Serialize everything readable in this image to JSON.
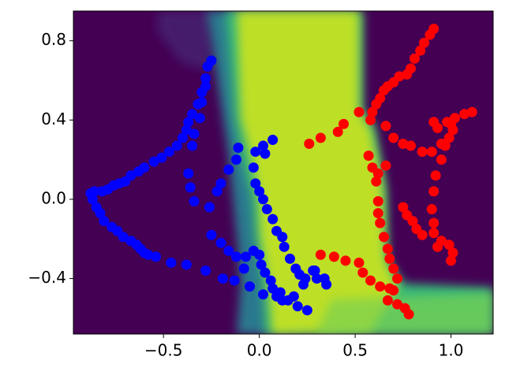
{
  "chart_data": {
    "type": "scatter",
    "xlim": [
      -0.97,
      1.22
    ],
    "ylim": [
      -0.68,
      0.95
    ],
    "xticks": [
      {
        "value": -0.5,
        "label": "−0.5"
      },
      {
        "value": 0.0,
        "label": "0.0"
      },
      {
        "value": 0.5,
        "label": "0.5"
      },
      {
        "value": 1.0,
        "label": "1.0"
      }
    ],
    "yticks": [
      {
        "value": -0.4,
        "label": "−0.4"
      },
      {
        "value": 0.0,
        "label": "0.0"
      },
      {
        "value": 0.4,
        "label": "0.4"
      },
      {
        "value": 0.8,
        "label": "0.8"
      }
    ],
    "grid": false,
    "series": [
      {
        "color": "#0000ff",
        "x": [
          -0.88,
          -0.86,
          -0.82,
          -0.79,
          -0.76,
          -0.73,
          -0.7,
          -0.67,
          -0.63,
          -0.6,
          -0.55,
          -0.51,
          -0.47,
          -0.43,
          -0.4,
          -0.38,
          -0.37,
          -0.35,
          -0.32,
          -0.3,
          -0.28,
          -0.27,
          -0.25,
          -0.87,
          -0.85,
          -0.83,
          -0.81,
          -0.77,
          -0.74,
          -0.71,
          -0.67,
          -0.64,
          -0.62,
          -0.6,
          -0.58,
          -0.54,
          -0.46,
          -0.38,
          -0.28,
          -0.19,
          -0.13,
          -0.05,
          0.02,
          -0.28,
          -0.3,
          -0.31,
          -0.34,
          -0.35,
          -0.37,
          -0.36,
          -0.34,
          -0.26,
          -0.22,
          -0.2,
          -0.16,
          -0.12,
          -0.11,
          -0.25,
          -0.2,
          -0.16,
          -0.12,
          -0.07,
          -0.03,
          0.0,
          -0.08,
          -0.02,
          0.02,
          0.03,
          0.07,
          -0.03,
          -0.02,
          0.0,
          0.02,
          0.04,
          0.07,
          0.09,
          0.12,
          0.13,
          0.16,
          0.19,
          0.21,
          0.24,
          0.28,
          0.3,
          0.34,
          0.35,
          0.29,
          0.23,
          0.18,
          0.12,
          0.09,
          0.07,
          0.06,
          0.03,
          0.01,
          0.11,
          0.15,
          0.2,
          0.25
        ],
        "y": [
          0.03,
          0.04,
          0.04,
          0.05,
          0.07,
          0.08,
          0.09,
          0.12,
          0.14,
          0.16,
          0.19,
          0.21,
          0.24,
          0.27,
          0.31,
          0.35,
          0.39,
          0.43,
          0.48,
          0.54,
          0.61,
          0.67,
          0.7,
          0.0,
          -0.04,
          -0.07,
          -0.11,
          -0.14,
          -0.16,
          -0.19,
          -0.21,
          -0.23,
          -0.25,
          -0.27,
          -0.28,
          -0.29,
          -0.32,
          -0.33,
          -0.36,
          -0.4,
          -0.41,
          -0.44,
          -0.48,
          0.57,
          0.49,
          0.41,
          0.33,
          0.27,
          0.13,
          0.06,
          -0.01,
          -0.04,
          0.04,
          0.08,
          0.15,
          0.2,
          0.26,
          -0.18,
          -0.22,
          -0.26,
          -0.29,
          -0.29,
          -0.26,
          -0.28,
          -0.35,
          0.24,
          0.27,
          0.23,
          0.3,
          0.16,
          0.08,
          0.04,
          0.0,
          -0.05,
          -0.1,
          -0.16,
          -0.19,
          -0.24,
          -0.3,
          -0.35,
          -0.38,
          -0.4,
          -0.36,
          -0.4,
          -0.4,
          -0.43,
          -0.36,
          -0.43,
          -0.49,
          -0.51,
          -0.49,
          -0.45,
          -0.41,
          -0.37,
          -0.33,
          -0.47,
          -0.51,
          -0.54,
          -0.56
        ]
      },
      {
        "color": "#ff0000",
        "x": [
          0.91,
          0.89,
          0.86,
          0.84,
          0.81,
          0.79,
          0.77,
          0.73,
          0.7,
          0.67,
          0.65,
          0.63,
          0.61,
          0.59,
          0.58,
          1.11,
          1.07,
          1.02,
          0.98,
          0.93,
          0.91,
          1.01,
          0.99,
          0.95,
          0.9,
          0.85,
          0.79,
          0.75,
          0.7,
          0.66,
          1.0,
          0.97,
          0.95,
          0.92,
          0.91,
          0.9,
          0.91,
          0.91,
          0.93,
          0.99,
          1.01,
          1.0,
          0.95,
          0.26,
          0.32,
          0.41,
          0.44,
          0.52,
          0.57,
          0.59,
          0.66,
          0.61,
          0.62,
          0.62,
          0.63,
          0.65,
          0.67,
          0.68,
          0.7,
          0.72,
          0.68,
          0.67,
          0.72,
          0.76,
          0.78,
          0.7,
          0.32,
          0.39,
          0.45,
          0.52,
          0.54,
          0.58,
          0.63,
          0.75,
          0.77,
          0.8,
          0.82,
          0.85,
          0.62
        ],
        "y": [
          0.86,
          0.83,
          0.79,
          0.75,
          0.71,
          0.66,
          0.63,
          0.62,
          0.59,
          0.57,
          0.55,
          0.51,
          0.48,
          0.44,
          0.4,
          0.44,
          0.43,
          0.41,
          0.39,
          0.36,
          0.39,
          0.35,
          0.31,
          0.28,
          0.24,
          0.24,
          0.27,
          0.28,
          0.31,
          0.37,
          0.38,
          0.27,
          0.2,
          0.12,
          0.04,
          -0.05,
          -0.12,
          -0.17,
          -0.24,
          -0.23,
          -0.27,
          -0.31,
          -0.21,
          0.28,
          0.31,
          0.34,
          0.38,
          0.44,
          0.22,
          0.16,
          0.17,
          0.09,
          -0.01,
          -0.07,
          -0.12,
          -0.19,
          -0.25,
          -0.3,
          -0.35,
          -0.4,
          -0.45,
          -0.51,
          -0.53,
          -0.55,
          -0.58,
          -0.46,
          -0.28,
          -0.29,
          -0.31,
          -0.32,
          -0.37,
          -0.41,
          -0.44,
          -0.04,
          -0.08,
          -0.11,
          -0.15,
          -0.18,
          0.13
        ]
      }
    ]
  }
}
